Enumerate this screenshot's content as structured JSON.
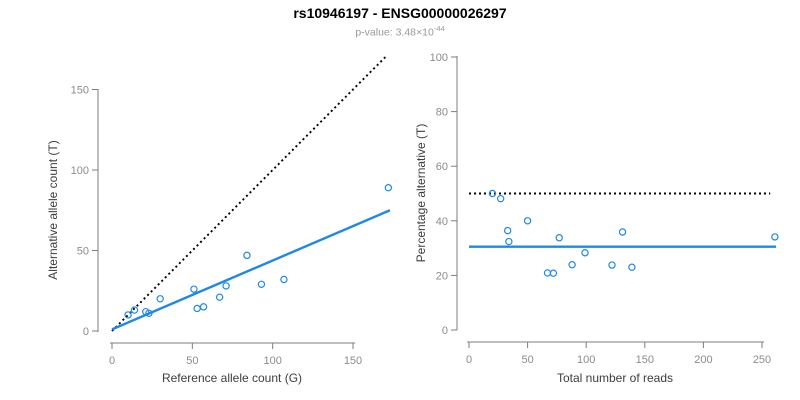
{
  "header": {
    "title": "rs10946197 - ENSG00000026297",
    "subtitle_prefix": "p-value: 3.48×10",
    "subtitle_exponent": "-44"
  },
  "colors": {
    "accent_blue": "#1e87e8",
    "dotted_black": "#000000",
    "axis_gray": "#7d7d7d",
    "tick_label_gray": "#8c8c8c",
    "axis_title_gray": "#3d3d3d",
    "subtitle_gray": "#999999"
  },
  "chart_data": [
    {
      "type": "scatter",
      "panel": "left",
      "xlabel": "Reference allele count (G)",
      "ylabel": "Alternative allele count (T)",
      "xticks": [
        0,
        50,
        100,
        150
      ],
      "yticks": [
        0,
        50,
        100,
        150
      ],
      "xlim": [
        0,
        175
      ],
      "ylim": [
        0,
        175
      ],
      "grid": false,
      "legend": "none",
      "marker": "open-circle",
      "points": [
        [
          10,
          10
        ],
        [
          14,
          13
        ],
        [
          21,
          12
        ],
        [
          23,
          11
        ],
        [
          30,
          20
        ],
        [
          51,
          26
        ],
        [
          53,
          14
        ],
        [
          57,
          15
        ],
        [
          67,
          21
        ],
        [
          71,
          28
        ],
        [
          84,
          47
        ],
        [
          93,
          29
        ],
        [
          107,
          32
        ],
        [
          172,
          89
        ]
      ],
      "lines": [
        {
          "name": "identity-line",
          "style": "dotted",
          "color": "#000000",
          "from": [
            0,
            0
          ],
          "to": [
            171,
            171
          ]
        },
        {
          "name": "regression-line",
          "style": "solid",
          "color": "#1e87e8",
          "from": [
            0,
            1
          ],
          "to": [
            173,
            75
          ]
        }
      ]
    },
    {
      "type": "scatter",
      "panel": "right",
      "xlabel": "Total number of reads",
      "ylabel": "Percentage alternative (T)",
      "xticks": [
        0,
        50,
        100,
        150,
        200,
        250
      ],
      "yticks": [
        0,
        20,
        40,
        60,
        80,
        100
      ],
      "xlim": [
        0,
        262
      ],
      "ylim": [
        0,
        100
      ],
      "grid": false,
      "legend": "none",
      "marker": "open-circle",
      "points": [
        [
          20,
          50
        ],
        [
          27,
          48.1
        ],
        [
          33,
          36.4
        ],
        [
          34,
          32.4
        ],
        [
          50,
          40
        ],
        [
          67,
          20.9
        ],
        [
          72,
          20.8
        ],
        [
          77,
          33.8
        ],
        [
          88,
          23.9
        ],
        [
          99,
          28.3
        ],
        [
          122,
          23.8
        ],
        [
          131,
          35.9
        ],
        [
          139,
          23
        ],
        [
          261,
          34.1
        ]
      ],
      "lines": [
        {
          "name": "fifty-percent-line",
          "style": "dotted",
          "color": "#000000",
          "from": [
            0,
            50
          ],
          "to": [
            257,
            50
          ]
        },
        {
          "name": "mean-percentage-line",
          "style": "solid",
          "color": "#1e87e8",
          "from": [
            0,
            30.5
          ],
          "to": [
            262,
            30.5
          ]
        }
      ]
    }
  ]
}
